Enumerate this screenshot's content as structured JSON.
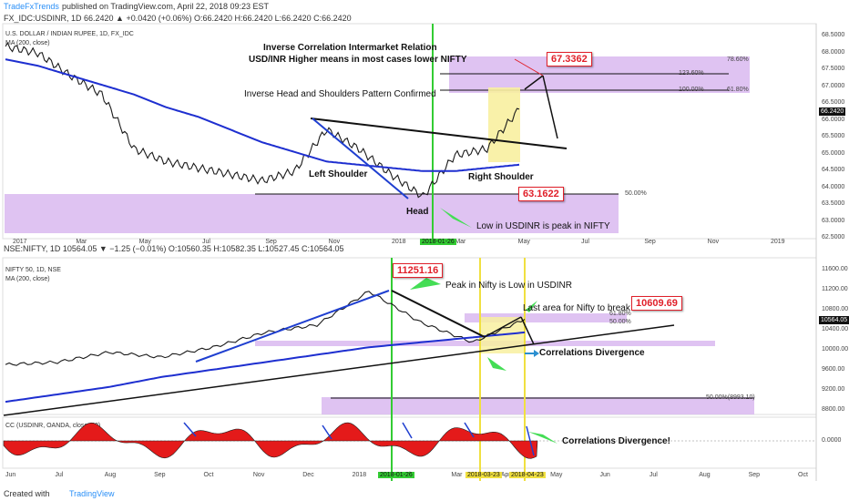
{
  "header": {
    "brand": "TradeFxTrends",
    "published": "published on TradingView.com, April 22, 2018 09:23 EST",
    "usd_line": "FX_IDC:USDINR, 1D  66.2420 ▲ +0.0420 (+0.06%)  O:66.2420  H:66.2420  L:66.2420  C:66.2420",
    "usd_name": "U.S. DOLLAR / INDIAN RUPEE, 1D, FX_IDC",
    "usd_ma": "MA (200, close)",
    "nifty_line": "NSE:NIFTY, 1D  10564.05 ▼ −1.25 (−0.01%)  O:10560.35  H:10582.35  L:10527.45  C:10564.05",
    "nifty_name": "NIFTY 50, 1D, NSE",
    "nifty_ma": "MA (200, close)",
    "cc_label": "CC (USDINR, OANDA, close, 20)",
    "footer": "Created with",
    "footer_brand": "TradingView"
  },
  "annotations": {
    "title1": "Inverse Correlation Intermarket Relation",
    "title2": "USD/INR Higher means in most cases lower NIFTY",
    "hs": "Inverse Head and Shoulders Pattern Confirmed",
    "left_shoulder": "Left Shoulder",
    "right_shoulder": "Right Shoulder",
    "head": "Head",
    "low_peak": "Low in USDINR is peak in NIFTY",
    "peak_low": "Peak in Nifty is Low in USDINR",
    "last_area": "Last area for Nifty to break lower",
    "divergence": "Correlations Divergence",
    "divergence2": "Correlations Divergence!",
    "box_usd_high": "67.3362",
    "box_usd_low": "63.1622",
    "box_nifty_high": "11251.16",
    "box_nifty_low": "10609.69",
    "fib_786": "78.60%",
    "fib_1236": "123.60%",
    "fib_100": "100.00%",
    "fib_618_usd": "61.80%",
    "fib_50_usd": "50.00%",
    "fib_618_n": "61.80%",
    "fib_50_n": "50.00%",
    "fib_50_low": "50.00%(8993.10)"
  },
  "axes": {
    "usd_y": [
      "68.5000",
      "68.0000",
      "67.5000",
      "67.0000",
      "66.5000",
      "66.0000",
      "65.5000",
      "65.0000",
      "64.5000",
      "64.0000",
      "63.5000",
      "63.0000",
      "62.5000"
    ],
    "usd_current": "66.2420",
    "usd_x": [
      "2017",
      "Mar",
      "May",
      "Jul",
      "Sep",
      "Nov",
      "2018",
      "Mar",
      "May",
      "Jul",
      "Sep",
      "Nov",
      "2019"
    ],
    "usd_datetag": "2018-01-26",
    "nifty_y": [
      "11600.00",
      "11200.00",
      "10800.00",
      "10400.00",
      "10000.00",
      "9600.00",
      "9200.00",
      "8800.00"
    ],
    "nifty_current": "10564.05",
    "nifty_x": [
      "Jun",
      "Jul",
      "Aug",
      "Sep",
      "Oct",
      "Nov",
      "Dec",
      "2018",
      "Feb",
      "Mar",
      "Apr",
      "May",
      "Jun",
      "Jul",
      "Aug",
      "Sep",
      "Oct"
    ],
    "nifty_dates": [
      "2018-01-26",
      "2018-03-23",
      "2018-04-23"
    ],
    "cc_y": "0.0000"
  },
  "colors": {
    "candle": "#1a1a1a",
    "ma_line": "#1e2fd0",
    "fib_fill": "#d9b8f0",
    "vline_green": "#33cc33",
    "vline_yellow": "#f0e040",
    "cc_fill": "#e41a1a",
    "annotation_red": "#e0202a",
    "arrow_blue": "#1f3fd0",
    "arrow_green": "#44dd55"
  },
  "chart_data": [
    {
      "type": "line",
      "title": "U.S. DOLLAR / INDIAN RUPEE, 1D, FX_IDC",
      "xlabel": "",
      "ylabel": "",
      "ylim": [
        62.3,
        68.8
      ],
      "x": [
        "2016-12",
        "2017-01",
        "2017-02",
        "2017-03",
        "2017-04",
        "2017-05",
        "2017-06",
        "2017-07",
        "2017-08",
        "2017-09",
        "2017-10",
        "2017-11",
        "2017-12",
        "2018-01",
        "2018-02",
        "2018-03",
        "2018-04"
      ],
      "series": [
        {
          "name": "",
          "values": [
            68.2,
            68.0,
            67.3,
            66.7,
            65.0,
            64.6,
            64.4,
            64.2,
            64.0,
            64.3,
            65.6,
            65.0,
            64.2,
            63.5,
            64.8,
            65.0,
            66.24
          ]
        },
        {
          "name": "MA (200, close)",
          "values": [
            67.8,
            67.6,
            67.3,
            67.0,
            66.7,
            66.3,
            66.0,
            65.6,
            65.2,
            64.9,
            64.6,
            64.5,
            64.4,
            64.3,
            64.3,
            64.4,
            64.5
          ]
        }
      ]
    },
    {
      "type": "line",
      "title": "NIFTY 50, 1D, NSE",
      "xlabel": "",
      "ylabel": "",
      "ylim": [
        8700,
        11750
      ],
      "x": [
        "2017-06",
        "2017-07",
        "2017-08",
        "2017-09",
        "2017-10",
        "2017-11",
        "2017-12",
        "2018-01",
        "2018-02",
        "2018-03",
        "2018-04"
      ],
      "series": [
        {
          "name": "",
          "values": [
            9650,
            9700,
            9900,
            9800,
            10000,
            10300,
            10450,
            11130,
            10500,
            10100,
            10564
          ]
        },
        {
          "name": "MA (200, close)",
          "values": [
            8900,
            9050,
            9200,
            9400,
            9550,
            9700,
            9850,
            10000,
            10100,
            10200,
            10300
          ]
        }
      ]
    }
  ]
}
